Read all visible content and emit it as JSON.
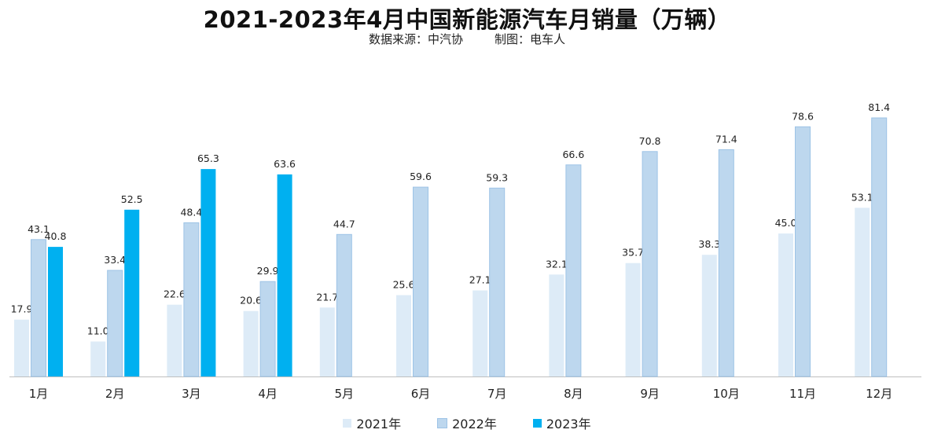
{
  "header": {
    "title": "2021-2023年4月中国新能源汽车月销量（万辆）",
    "source": "数据来源：中汽协",
    "maker": "制图：电车人"
  },
  "colors": {
    "s2021": "#DDEBF7",
    "s2022": "#BDD7EE",
    "s2023": "#00B0F0",
    "border2022": "#9DC3E6",
    "axis": "#BFBFBF"
  },
  "chart_data": {
    "type": "bar",
    "title": "2021-2023年4月中国新能源汽车月销量（万辆）",
    "xlabel": "",
    "ylabel": "",
    "ylim": [
      0,
      90
    ],
    "grid": false,
    "legend": "bottom",
    "categories": [
      "1月",
      "2月",
      "3月",
      "4月",
      "5月",
      "6月",
      "7月",
      "8月",
      "9月",
      "10月",
      "11月",
      "12月"
    ],
    "series": [
      {
        "name": "2021年",
        "values": [
          17.9,
          11.0,
          22.6,
          20.6,
          21.7,
          25.6,
          27.1,
          32.1,
          35.7,
          38.3,
          45.0,
          53.1
        ]
      },
      {
        "name": "2022年",
        "values": [
          43.1,
          33.4,
          48.4,
          29.9,
          44.7,
          59.6,
          59.3,
          66.6,
          70.8,
          71.4,
          78.6,
          81.4
        ]
      },
      {
        "name": "2023年",
        "values": [
          40.8,
          52.5,
          65.3,
          63.6,
          null,
          null,
          null,
          null,
          null,
          null,
          null,
          null
        ]
      }
    ]
  },
  "legend": [
    "2021年",
    "2022年",
    "2023年"
  ]
}
